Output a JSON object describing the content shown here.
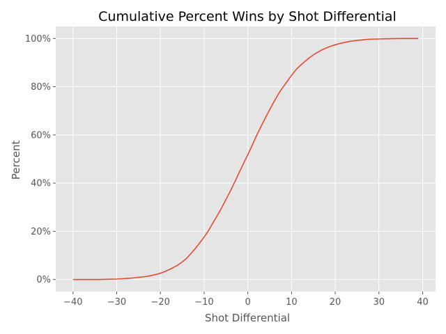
{
  "chart_data": {
    "type": "line",
    "title": "Cumulative Percent Wins by Shot Differential",
    "xlabel": "Shot Differential",
    "ylabel": "Percent",
    "xlim": [
      -43.95,
      42.95
    ],
    "ylim": [
      -0.05,
      1.05
    ],
    "x_ticks": [
      -40,
      -30,
      -20,
      -10,
      0,
      10,
      20,
      30,
      40
    ],
    "x_tick_labels": [
      "−40",
      "−30",
      "−20",
      "−10",
      "0",
      "10",
      "20",
      "30",
      "40"
    ],
    "y_ticks": [
      0,
      0.2,
      0.4,
      0.6,
      0.8,
      1.0
    ],
    "y_tick_labels": [
      "0%",
      "20%",
      "40%",
      "60%",
      "80%",
      "100%"
    ],
    "grid": true,
    "background_color": "#e5e5e5",
    "grid_color": "#ffffff",
    "line_color": "#e24a33",
    "series": [
      {
        "x": [
          -40,
          -38,
          -36,
          -34,
          -32,
          -30,
          -28,
          -27,
          -26,
          -25,
          -24,
          -23,
          -22,
          -21,
          -20,
          -19,
          -18,
          -17,
          -16,
          -15,
          -14,
          -13,
          -12,
          -11,
          -10,
          -9,
          -8,
          -7,
          -6,
          -5,
          -4,
          -3,
          -2,
          -1,
          0,
          1,
          2,
          3,
          4,
          5,
          6,
          7,
          8,
          9,
          10,
          11,
          12,
          13,
          14,
          15,
          16,
          17,
          18,
          19,
          20,
          21,
          22,
          23,
          24,
          25,
          26,
          27,
          28,
          30,
          32,
          35,
          39
        ],
        "y": [
          0.0,
          0.0,
          0.0,
          0.0,
          0.001,
          0.002,
          0.004,
          0.005,
          0.007,
          0.009,
          0.011,
          0.013,
          0.017,
          0.021,
          0.026,
          0.033,
          0.041,
          0.05,
          0.06,
          0.073,
          0.088,
          0.108,
          0.129,
          0.152,
          0.176,
          0.203,
          0.234,
          0.265,
          0.297,
          0.332,
          0.367,
          0.404,
          0.443,
          0.481,
          0.518,
          0.557,
          0.597,
          0.634,
          0.67,
          0.705,
          0.738,
          0.77,
          0.797,
          0.822,
          0.847,
          0.87,
          0.888,
          0.904,
          0.919,
          0.932,
          0.943,
          0.953,
          0.961,
          0.968,
          0.974,
          0.979,
          0.983,
          0.987,
          0.99,
          0.992,
          0.994,
          0.996,
          0.997,
          0.998,
          0.999,
          1.0,
          1.0
        ]
      }
    ]
  }
}
